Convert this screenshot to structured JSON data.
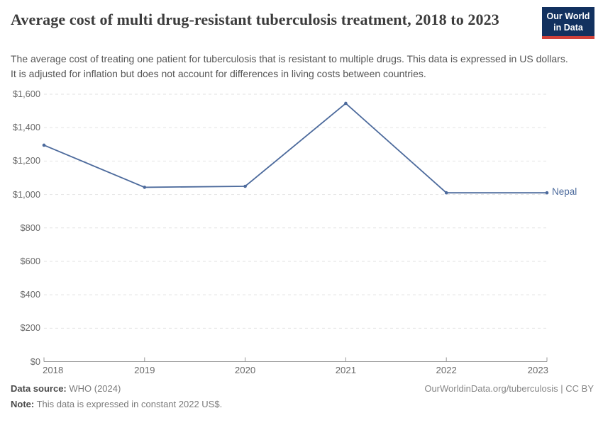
{
  "header": {
    "title": "Average cost of multi drug-resistant tuberculosis treatment, 2018 to 2023",
    "subtitle": "The average cost of treating one patient for tuberculosis that is resistant to multiple drugs. This data is expressed in US dollars. It is adjusted for inflation but does not account for differences in living costs between countries.",
    "logo_line1": "Our World",
    "logo_line2": "in Data"
  },
  "chart_data": {
    "type": "line",
    "title": "Average cost of multi drug-resistant tuberculosis treatment, 2018 to 2023",
    "x": [
      "2018",
      "2019",
      "2020",
      "2021",
      "2022",
      "2023"
    ],
    "series": [
      {
        "name": "Nepal",
        "values": [
          1295,
          1043,
          1049,
          1545,
          1010,
          1010
        ]
      }
    ],
    "ylim": [
      0,
      1600
    ],
    "yticks": [
      0,
      200,
      400,
      600,
      800,
      1000,
      1200,
      1400,
      1600
    ],
    "ytick_labels": [
      "$0",
      "$200",
      "$400",
      "$600",
      "$800",
      "$1,000",
      "$1,200",
      "$1,400",
      "$1,600"
    ],
    "xlabel": "",
    "ylabel": "",
    "grid": "horizontal-dashed",
    "legend_position": "end-of-line",
    "line_color": "#4c6a9c"
  },
  "footer": {
    "datasource_label": "Data source:",
    "datasource_value": " WHO (2024)",
    "note_label": "Note:",
    "note_value": " This data is expressed in constant 2022 US$.",
    "link": "OurWorldinData.org/tuberculosis | CC BY"
  },
  "colors": {
    "line": "#4c6a9c",
    "logo_background": "#12315f",
    "logo_bar": "#d0413a",
    "grid": "#e2e2e2",
    "axis": "#9a9a9a"
  }
}
